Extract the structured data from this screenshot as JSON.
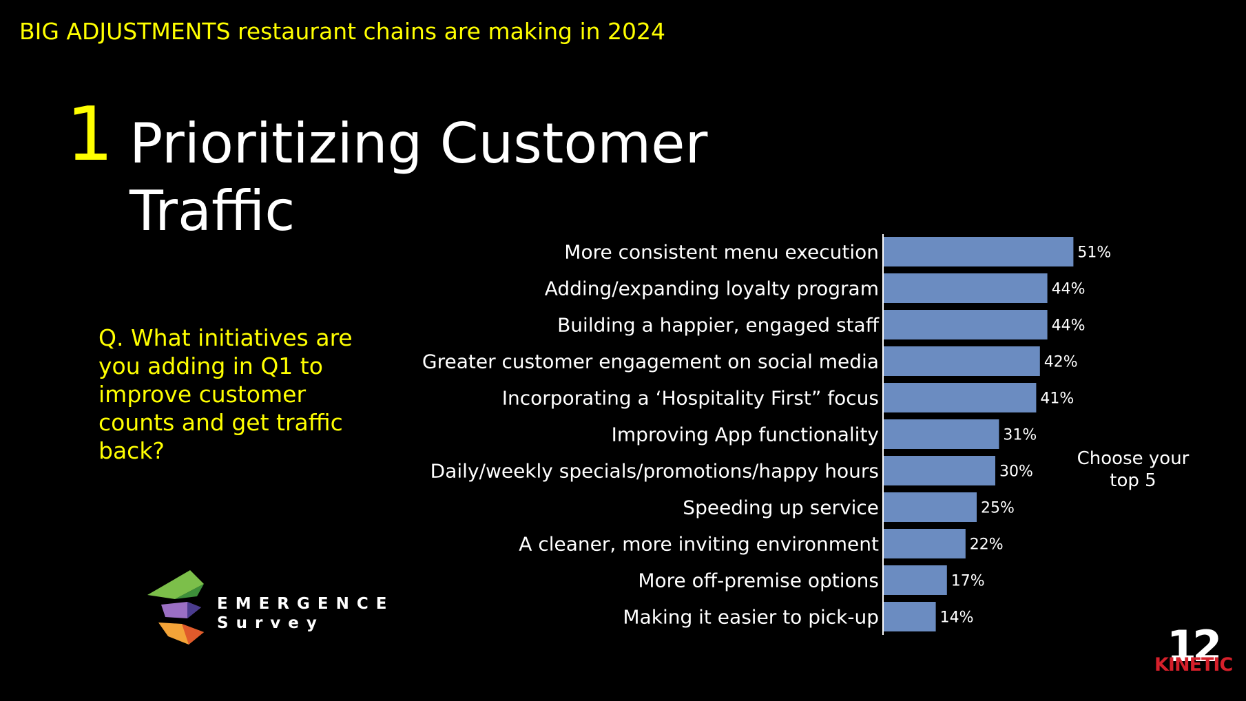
{
  "header": {
    "title": "BIG ADJUSTMENTS restaurant chains are making in 2024"
  },
  "section": {
    "number": "1",
    "title": "Prioritizing Customer Traffic"
  },
  "question": "Q. What initiatives are you adding in Q1 to improve customer counts and get traffic back?",
  "note": "Choose your top 5",
  "brand": {
    "name": "EMERGENCE",
    "subtitle": "Survey"
  },
  "kinetic": {
    "number": "12",
    "word": "KINETIC"
  },
  "colors": {
    "accent": "#ffff00",
    "bar": "#6b8cc1",
    "kinetic_red": "#d6202b"
  },
  "chart_data": {
    "type": "bar",
    "orientation": "horizontal",
    "categories": [
      "More consistent menu execution",
      "Adding/expanding loyalty program",
      "Building a happier, engaged staff",
      "Greater customer engagement on social media",
      "Incorporating a ‘Hospitality First” focus",
      "Improving App functionality",
      "Daily/weekly specials/promotions/happy hours",
      "Speeding up service",
      "A cleaner, more inviting environment",
      "More off-premise options",
      "Making it easier to pick-up"
    ],
    "values": [
      51,
      44,
      44,
      42,
      41,
      31,
      30,
      25,
      22,
      17,
      14
    ],
    "value_labels": [
      "51%",
      "44%",
      "44%",
      "42%",
      "41%",
      "31%",
      "30%",
      "25%",
      "22%",
      "17%",
      "14%"
    ],
    "unit": "%"
  }
}
